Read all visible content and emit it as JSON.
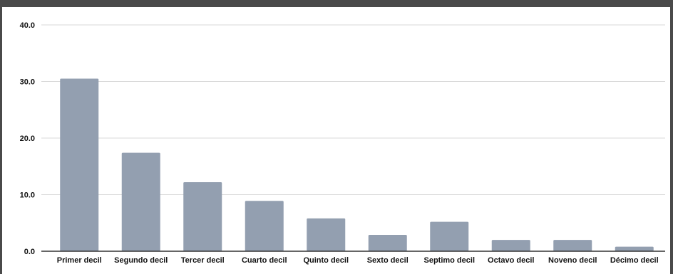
{
  "chart_data": {
    "type": "bar",
    "title": "",
    "xlabel": "",
    "ylabel": "",
    "ylim": [
      0,
      40
    ],
    "yticks": [
      "0.0",
      "10.0",
      "20.0",
      "30.0",
      "40.0"
    ],
    "ytick_values": [
      0,
      10,
      20,
      30,
      40
    ],
    "categories": [
      "Primer decil",
      "Segundo decil",
      "Tercer decil",
      "Cuarto decil",
      "Quinto decil",
      "Sexto decil",
      "Septimo decil",
      "Octavo decil",
      "Noveno decil",
      "Décimo decil"
    ],
    "values": [
      30.5,
      17.4,
      12.2,
      8.9,
      5.8,
      2.9,
      5.2,
      2.0,
      2.0,
      0.8
    ],
    "grid": true,
    "legend": "none",
    "bar_color": "#939fb0",
    "grid_color": "#d9d9d9",
    "axis_color": "#333333"
  }
}
